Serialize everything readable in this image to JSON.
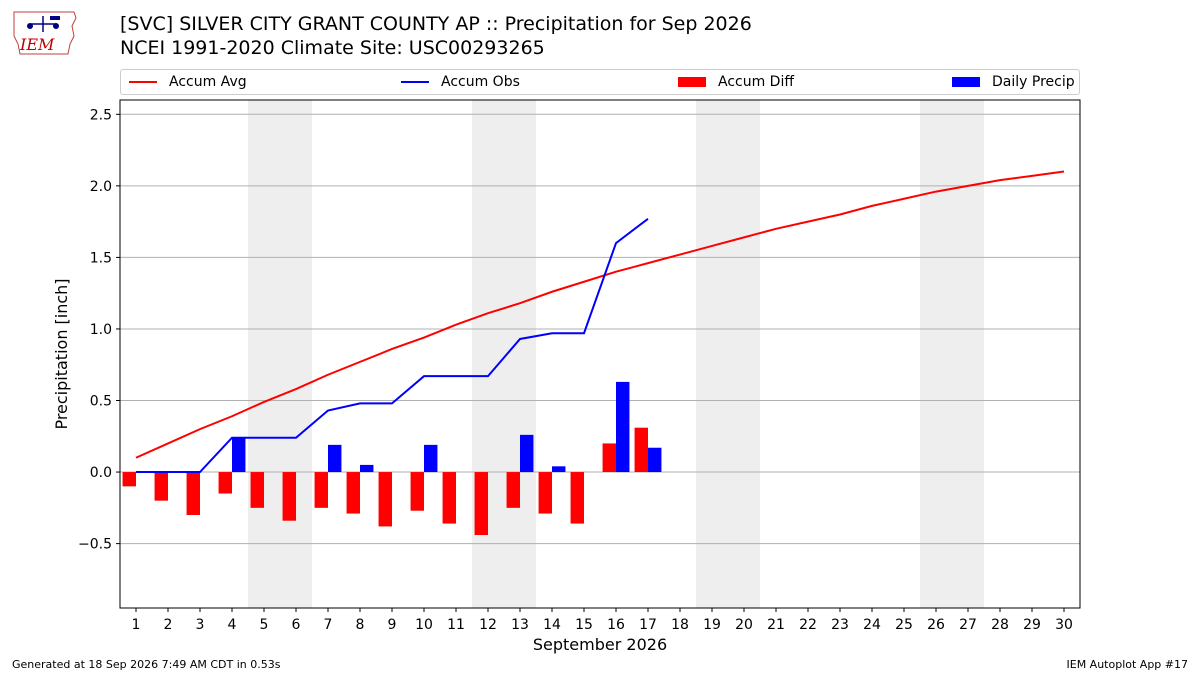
{
  "header": {
    "title_line1": "[SVC] SILVER CITY GRANT COUNTY AP :: Precipitation for Sep 2026",
    "title_line2": "NCEI 1991-2020 Climate Site: USC00293265"
  },
  "logo": {
    "text": "IEM"
  },
  "legend": {
    "accum_avg": "Accum Avg",
    "accum_obs": "Accum Obs",
    "accum_diff": "Accum Diff",
    "daily_precip": "Daily Precip"
  },
  "footer": {
    "left": "Generated at 18 Sep 2026 7:49 AM CDT in 0.53s",
    "right": "IEM Autoplot App #17"
  },
  "colors": {
    "avg": "#ff0000",
    "obs": "#0000ff",
    "diff": "#ff0000",
    "daily": "#0000ff",
    "weekend": "#eeeeee",
    "grid": "#b0b0b0"
  },
  "chart_data": {
    "type": "bar",
    "xlabel": "September 2026",
    "ylabel": "Precipitation [inch]",
    "xlim": [
      0.5,
      30.5
    ],
    "ylim": [
      -0.95,
      2.6
    ],
    "yticks": [
      -0.5,
      0.0,
      0.5,
      1.0,
      1.5,
      2.0,
      2.5
    ],
    "ytick_labels": [
      "−0.5",
      "0.0",
      "0.5",
      "1.0",
      "1.5",
      "2.0",
      "2.5"
    ],
    "grid": true,
    "legend_position": "top",
    "x": [
      1,
      2,
      3,
      4,
      5,
      6,
      7,
      8,
      9,
      10,
      11,
      12,
      13,
      14,
      15,
      16,
      17,
      18,
      19,
      20,
      21,
      22,
      23,
      24,
      25,
      26,
      27,
      28,
      29,
      30
    ],
    "weekend_spans": [
      [
        4.5,
        6.5
      ],
      [
        11.5,
        13.5
      ],
      [
        18.5,
        20.5
      ],
      [
        25.5,
        27.5
      ]
    ],
    "series": [
      {
        "name": "Accum Avg",
        "type": "line",
        "x": [
          1,
          2,
          3,
          4,
          5,
          6,
          7,
          8,
          9,
          10,
          11,
          12,
          13,
          14,
          15,
          16,
          17,
          18,
          19,
          20,
          21,
          22,
          23,
          24,
          25,
          26,
          27,
          28,
          29,
          30
        ],
        "values": [
          0.1,
          0.2,
          0.3,
          0.39,
          0.49,
          0.58,
          0.68,
          0.77,
          0.86,
          0.94,
          1.03,
          1.11,
          1.18,
          1.26,
          1.33,
          1.4,
          1.46,
          1.52,
          1.58,
          1.64,
          1.7,
          1.75,
          1.8,
          1.86,
          1.91,
          1.96,
          2.0,
          2.04,
          2.07,
          2.1
        ]
      },
      {
        "name": "Accum Obs",
        "type": "line",
        "x": [
          1,
          2,
          3,
          4,
          5,
          6,
          7,
          8,
          9,
          10,
          11,
          12,
          13,
          14,
          15,
          16,
          17
        ],
        "values": [
          0.0,
          0.0,
          0.0,
          0.24,
          0.24,
          0.24,
          0.43,
          0.48,
          0.48,
          0.67,
          0.67,
          0.67,
          0.93,
          0.97,
          0.97,
          1.6,
          1.77
        ]
      },
      {
        "name": "Accum Diff",
        "type": "bar",
        "x": [
          1,
          2,
          3,
          4,
          5,
          6,
          7,
          8,
          9,
          10,
          11,
          12,
          13,
          14,
          15,
          16,
          17
        ],
        "values": [
          -0.1,
          -0.2,
          -0.3,
          -0.15,
          -0.25,
          -0.34,
          -0.25,
          -0.29,
          -0.38,
          -0.27,
          -0.36,
          -0.44,
          -0.25,
          -0.29,
          -0.36,
          0.2,
          0.31
        ]
      },
      {
        "name": "Daily Precip",
        "type": "bar",
        "x": [
          4,
          7,
          8,
          10,
          13,
          14,
          16,
          17
        ],
        "values": [
          0.24,
          0.19,
          0.05,
          0.19,
          0.26,
          0.04,
          0.63,
          0.17
        ]
      }
    ]
  }
}
